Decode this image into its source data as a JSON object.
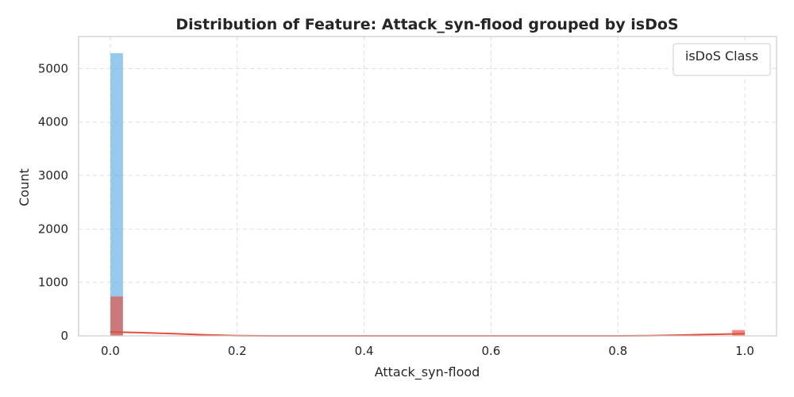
{
  "chart_data": {
    "type": "histogram",
    "title": "Distribution of Feature: Attack_syn-flood grouped by isDoS",
    "xlabel": "Attack_syn-flood",
    "ylabel": "Count",
    "xlim": [
      -0.05,
      1.05
    ],
    "ylim": [
      0,
      5600
    ],
    "x_ticks": [
      0.0,
      0.2,
      0.4,
      0.6,
      0.8,
      1.0
    ],
    "x_tick_labels": [
      "0.0",
      "0.2",
      "0.4",
      "0.6",
      "0.8",
      "1.0"
    ],
    "y_ticks": [
      0,
      1000,
      2000,
      3000,
      4000,
      5000
    ],
    "y_tick_labels": [
      "0",
      "1000",
      "2000",
      "3000",
      "4000",
      "5000"
    ],
    "grid": true,
    "legend": {
      "title": "isDoS Class",
      "placement": "top-right"
    },
    "bin_width": 0.02,
    "series": [
      {
        "color": "#5dade2",
        "bins": [
          {
            "x0": 0.0,
            "x1": 0.02,
            "count": 5290
          }
        ]
      },
      {
        "color": "#e74c3c",
        "bins": [
          {
            "x0": 0.0,
            "x1": 0.02,
            "count": 740
          },
          {
            "x0": 0.98,
            "x1": 1.0,
            "count": 110
          }
        ],
        "kde": [
          [
            0.0,
            75
          ],
          [
            0.05,
            60
          ],
          [
            0.1,
            40
          ],
          [
            0.15,
            18
          ],
          [
            0.2,
            5
          ],
          [
            0.25,
            0
          ],
          [
            0.8,
            0
          ],
          [
            0.85,
            5
          ],
          [
            0.9,
            15
          ],
          [
            0.95,
            28
          ],
          [
            1.0,
            40
          ]
        ]
      }
    ]
  }
}
